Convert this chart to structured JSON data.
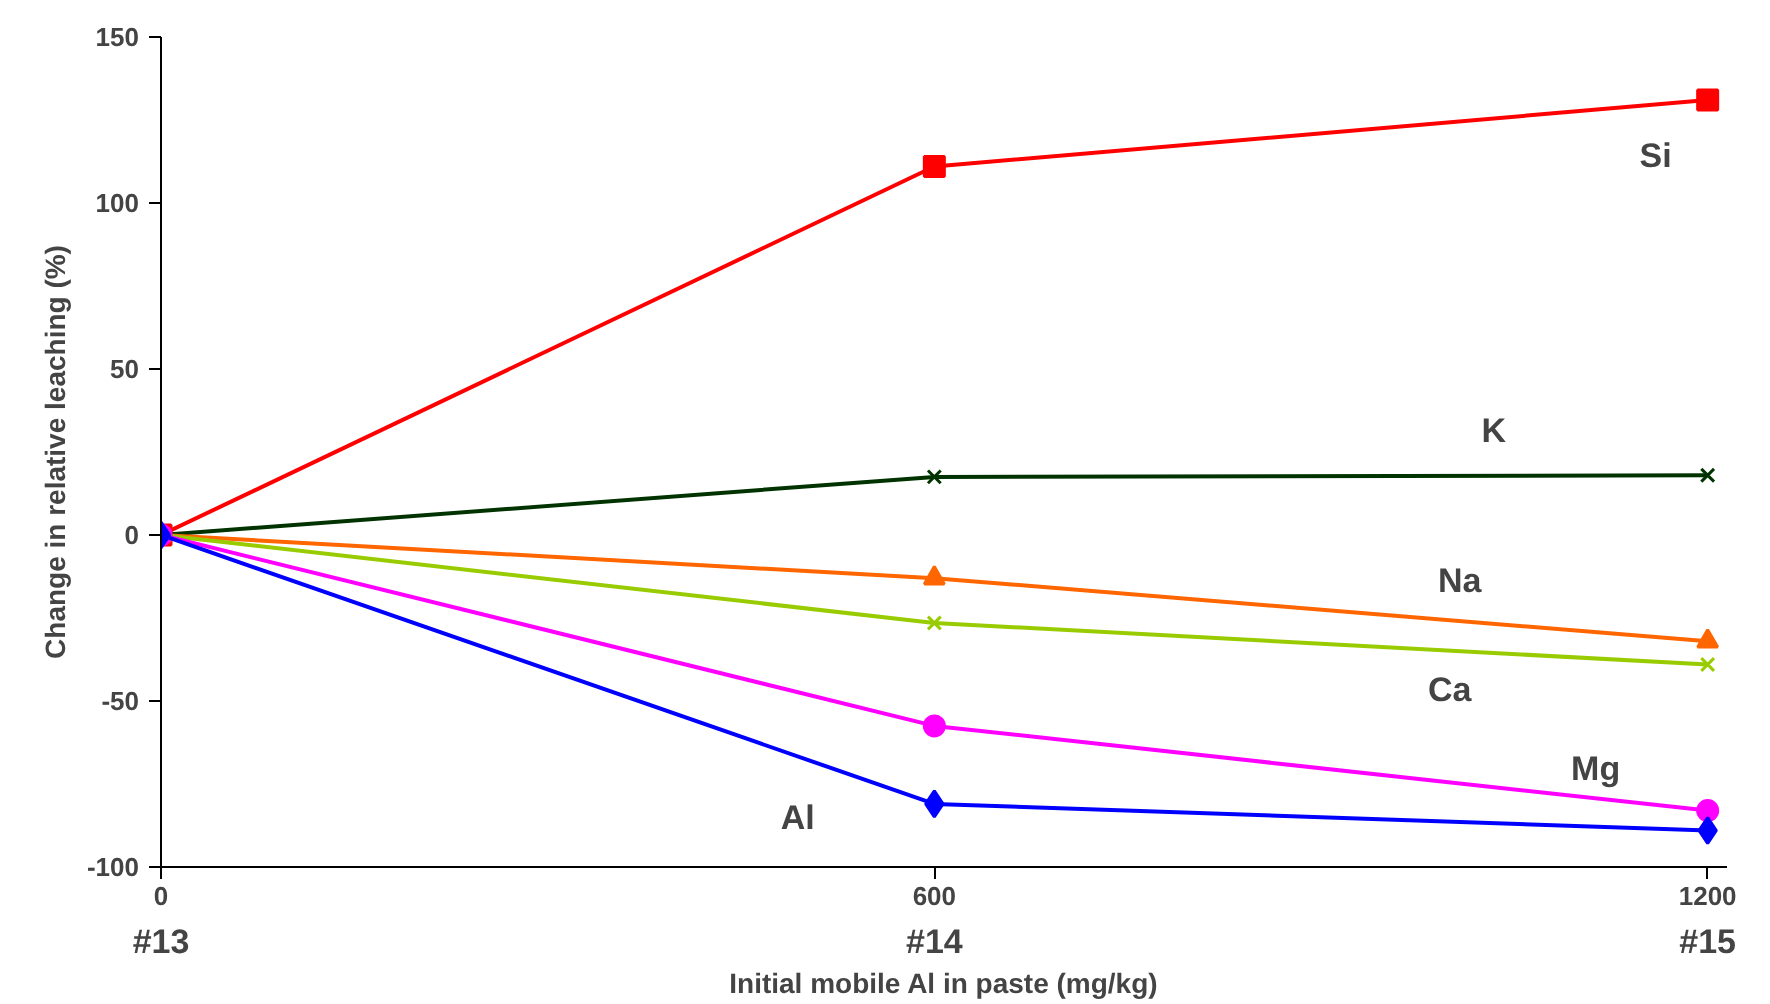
{
  "chart_data": {
    "type": "line",
    "xlabel": "Initial mobile Al in paste (mg/kg)",
    "ylabel": "Change in relative leaching (%)",
    "x": [
      0,
      600,
      1200
    ],
    "xlim": [
      0,
      1215
    ],
    "xticks": [
      0,
      600,
      1200
    ],
    "annotations": [
      "#13",
      "#14",
      "#15"
    ],
    "ylim": [
      -100,
      150
    ],
    "yticks": [
      -100,
      -50,
      0,
      50,
      100,
      150
    ],
    "grid": false,
    "line_style": "solid",
    "series": [
      {
        "name": "Si",
        "color": "#ff0000",
        "marker": "square",
        "values": [
          0,
          111,
          131
        ]
      },
      {
        "name": "K",
        "color": "#003300",
        "marker": "cross",
        "values": [
          0,
          17.5,
          18
        ]
      },
      {
        "name": "Na",
        "color": "#ff6600",
        "marker": "triangle",
        "values": [
          0,
          -13,
          -32
        ]
      },
      {
        "name": "Ca",
        "color": "#99cc00",
        "marker": "cross",
        "values": [
          0,
          -26.5,
          -39
        ]
      },
      {
        "name": "Mg",
        "color": "#ff00ff",
        "marker": "circle",
        "values": [
          0,
          -57.5,
          -83
        ]
      },
      {
        "name": "Al",
        "color": "#0000ff",
        "marker": "diamond",
        "values": [
          0,
          -81,
          -89
        ]
      }
    ]
  }
}
